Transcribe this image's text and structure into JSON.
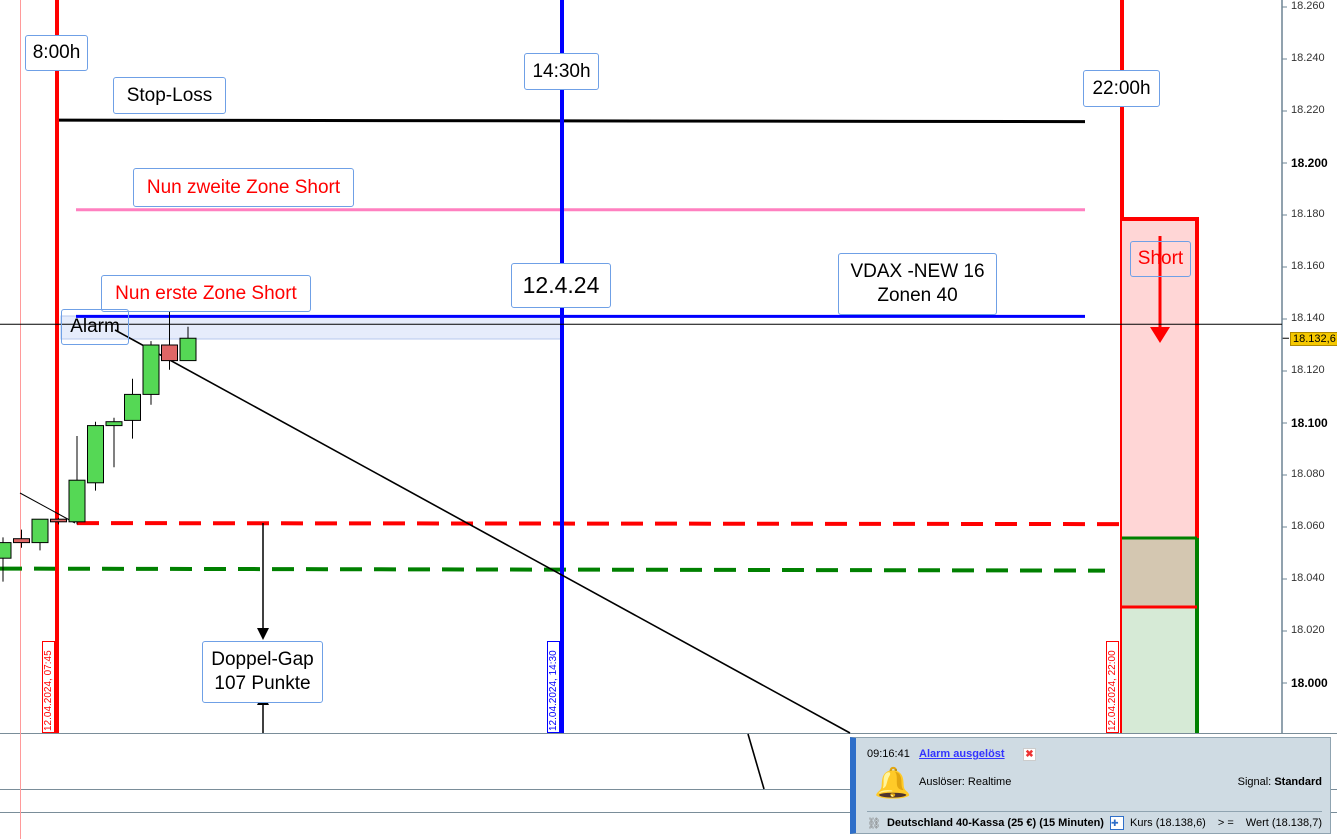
{
  "chart": {
    "price_axis": {
      "max": 18260,
      "min": 18000,
      "step": 20,
      "ticks": [
        "18.260",
        "18.240",
        "18.220",
        "18.200",
        "18.180",
        "18.160",
        "18.140",
        "18.120",
        "18.100",
        "18.080",
        "18.060",
        "18.040",
        "18.020",
        "18.000"
      ],
      "bold_ticks": [
        "18.200",
        "18.100",
        "18.000"
      ],
      "current_price": "18.132,6"
    },
    "candles": [
      {
        "o": 18048,
        "h": 18056,
        "l": 18039,
        "c": 18054
      },
      {
        "o": 18055.5,
        "h": 18059,
        "l": 18052,
        "c": 18054
      },
      {
        "o": 18054,
        "h": 18063,
        "l": 18051,
        "c": 18063
      },
      {
        "o": 18063,
        "h": 18063.5,
        "l": 18061,
        "c": 18062
      },
      {
        "o": 18062,
        "h": 18095,
        "l": 18061,
        "c": 18078
      },
      {
        "o": 18077,
        "h": 18100.5,
        "l": 18074,
        "c": 18099
      },
      {
        "o": 18099,
        "h": 18102,
        "l": 18083,
        "c": 18100.5
      },
      {
        "o": 18101,
        "h": 18117,
        "l": 18094,
        "c": 18111
      },
      {
        "o": 18111,
        "h": 18131.5,
        "l": 18107,
        "c": 18130
      },
      {
        "o": 18130,
        "h": 18147,
        "l": 18120.5,
        "c": 18124
      },
      {
        "o": 18124,
        "h": 18137,
        "l": 18124,
        "c": 18132.6
      }
    ],
    "levels": {
      "stop_loss": 18216.5,
      "second_zone": 18182,
      "first_zone": 18141,
      "gap_top": 18061.5,
      "gap_bottom": 18044,
      "crosshair": 18138
    },
    "colors": {
      "bull": "#55d855",
      "bear": "#e06666",
      "stop": "#000000",
      "zone2": "#ff80c0",
      "zone1": "#0000ff",
      "gap_top": "#ff0000",
      "gap_bottom": "#008000",
      "session_open": "#ff0000",
      "session_mid": "#0000ff"
    },
    "labels": {
      "open_time": "8:00h",
      "stop_loss": "Stop-Loss",
      "mid_time": "14:30h",
      "close_time": "22:00h",
      "second_zone": "Nun zweite Zone Short",
      "first_zone": "Nun erste Zone Short",
      "date": "12.4.24",
      "vdax_line1": "VDAX -NEW 16",
      "vdax_line2": "Zonen 40",
      "alarm": "Alarm",
      "short": "Short",
      "gap_line1": "Doppel-Gap",
      "gap_line2": "107 Punkte"
    },
    "date_markers": [
      "12.04.2024, 07:45",
      "12.04.2024, 14:30",
      "12.04.2024, 22:00"
    ]
  },
  "alert_popup": {
    "time": "09:16:41",
    "title": "Alarm ausgelöst",
    "icon": "bell-icon",
    "trigger": "Auslöser: Realtime",
    "signal_label": "Signal:",
    "signal_value": "Standard",
    "instrument": "Deutschland 40-Kassa (25 €) (15 Minuten)",
    "condition_left": "Kurs (18.138,6)",
    "operator": "> =",
    "condition_right": "Wert (18.138,7)"
  }
}
